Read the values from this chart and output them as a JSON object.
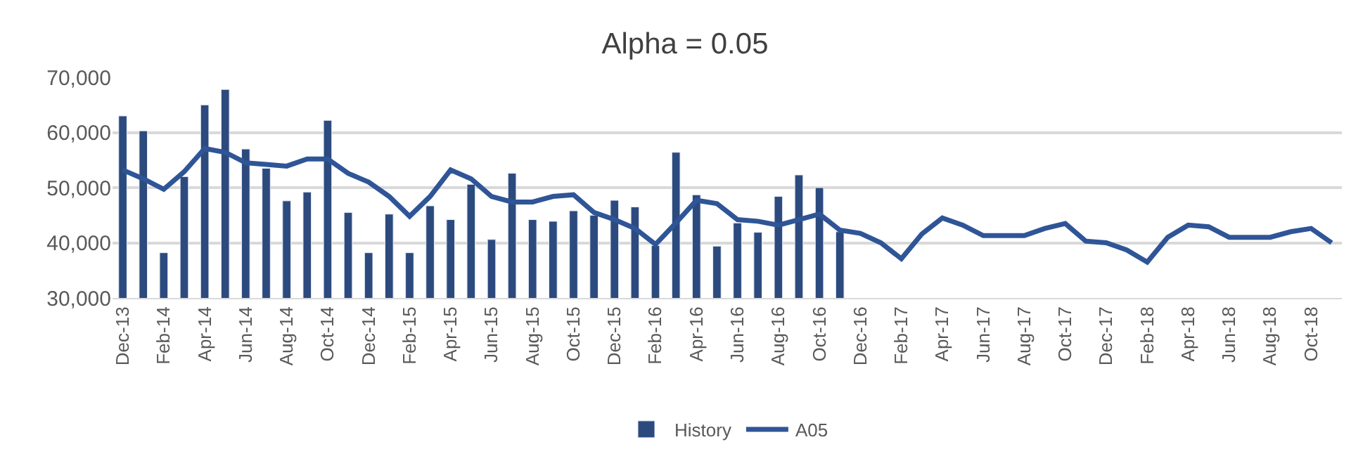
{
  "chart_data": {
    "type": "bar",
    "title": "Alpha = 0.05",
    "categories": [
      "Dec-13",
      null,
      "Feb-14",
      null,
      "Apr-14",
      null,
      "Jun-14",
      null,
      "Aug-14",
      null,
      "Oct-14",
      null,
      "Dec-14",
      null,
      "Feb-15",
      null,
      "Apr-15",
      null,
      "Jun-15",
      null,
      "Aug-15",
      null,
      "Oct-15",
      null,
      "Dec-15",
      null,
      "Feb-16",
      null,
      "Apr-16",
      null,
      "Jun-16",
      null,
      "Aug-16",
      null,
      "Oct-16",
      null,
      "Dec-16",
      null,
      "Feb-17",
      null,
      "Apr-17",
      null,
      "Jun-17",
      null,
      "Aug-17",
      null,
      "Oct-17",
      null,
      "Dec-17",
      null,
      "Feb-18",
      null,
      "Apr-18",
      null,
      "Jun-18",
      null,
      "Aug-18",
      null,
      "Oct-18",
      null
    ],
    "series": [
      {
        "name": "History",
        "color": "#2c4a7e",
        "values": [
          63000,
          60300,
          38200,
          52000,
          65000,
          67800,
          57000,
          53500,
          47600,
          49200,
          62200,
          45500,
          38200,
          45200,
          38200,
          46700,
          44200,
          50600,
          40600,
          52600,
          44200,
          43900,
          45800,
          45000,
          47700,
          46500,
          39500,
          56400,
          48700,
          39400,
          43600,
          41900,
          48400,
          52300,
          50000,
          42000,
          null,
          null,
          null,
          null,
          null,
          null,
          null,
          null,
          null,
          null,
          null,
          null,
          null,
          null,
          null,
          null,
          null,
          null,
          null,
          null,
          null,
          null,
          null,
          null
        ]
      },
      {
        "name": "A05",
        "type": "line",
        "color": "#2f5597",
        "values": [
          53200,
          51600,
          49700,
          52900,
          57100,
          56400,
          54500,
          54200,
          53900,
          55200,
          55200,
          52600,
          51000,
          48400,
          44800,
          48400,
          53200,
          51600,
          48400,
          47400,
          47400,
          48400,
          48700,
          45500,
          44200,
          42600,
          39700,
          43600,
          47700,
          47100,
          44200,
          43900,
          43200,
          44200,
          45200,
          42300,
          41700,
          40000,
          37100,
          41600,
          44500,
          43200,
          41300,
          41300,
          41300,
          42600,
          43500,
          40300,
          40000,
          38700,
          36500,
          41000,
          43200,
          42900,
          41000,
          41000,
          41000,
          42000,
          42600,
          40000
        ]
      }
    ],
    "ylim": [
      30000,
      70000
    ],
    "yticks": [
      {
        "value": 30000,
        "label": "30,000"
      },
      {
        "value": 40000,
        "label": "40,000"
      },
      {
        "value": 50000,
        "label": "50,000"
      },
      {
        "value": 60000,
        "label": "60,000"
      },
      {
        "value": 70000,
        "label": "70,000"
      }
    ],
    "grid": "y",
    "legend": "bottom",
    "marker": "none",
    "line_style": "solid"
  }
}
